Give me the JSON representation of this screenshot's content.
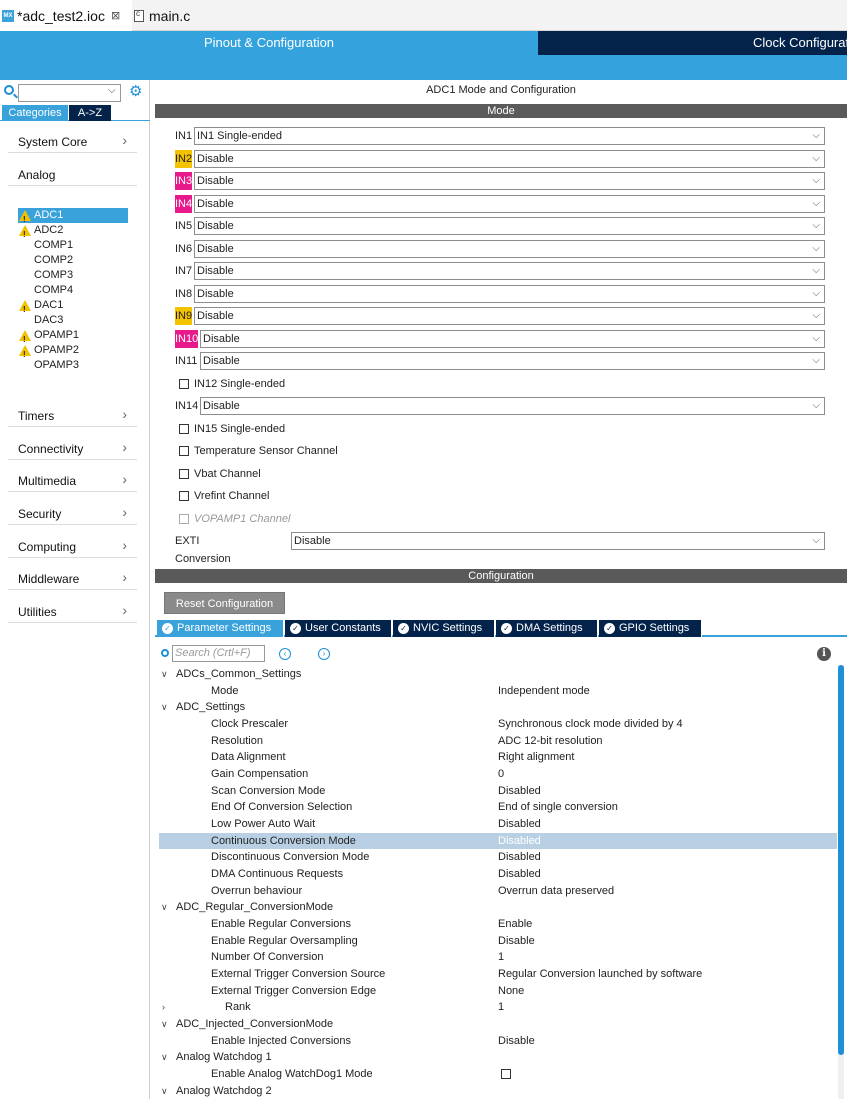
{
  "editor_tabs": [
    {
      "label": "*adc_test2.ioc",
      "icon": "mx-icon"
    },
    {
      "label": "main.c",
      "icon": "c-file-icon"
    }
  ],
  "header": {
    "pinout_tab": "Pinout & Configuration",
    "clock_tab": "Clock Configuration"
  },
  "left_panel": {
    "tabs": {
      "categories": "Categories",
      "az": "A->Z"
    },
    "categories": {
      "system_core": "System Core",
      "analog": "Analog",
      "timers": "Timers",
      "connectivity": "Connectivity",
      "multimedia": "Multimedia",
      "security": "Security",
      "computing": "Computing",
      "middleware": "Middleware",
      "utilities": "Utilities"
    },
    "analog_items": [
      {
        "label": "ADC1",
        "warning": true,
        "selected": true
      },
      {
        "label": "ADC2",
        "warning": true
      },
      {
        "label": "COMP1",
        "warning": false
      },
      {
        "label": "COMP2",
        "warning": false
      },
      {
        "label": "COMP3",
        "warning": false
      },
      {
        "label": "COMP4",
        "warning": false
      },
      {
        "label": "DAC1",
        "warning": true
      },
      {
        "label": "DAC3",
        "warning": false
      },
      {
        "label": "OPAMP1",
        "warning": true
      },
      {
        "label": "OPAMP2",
        "warning": true
      },
      {
        "label": "OPAMP3",
        "warning": false
      }
    ]
  },
  "panel": {
    "title": "ADC1 Mode and Configuration",
    "mode_section": "Mode",
    "config_section": "Configuration",
    "channels": [
      {
        "label": "IN1",
        "value": "IN1 Single-ended",
        "highlight": "none"
      },
      {
        "label": "IN2",
        "value": "Disable",
        "highlight": "yellow"
      },
      {
        "label": "IN3",
        "value": "Disable",
        "highlight": "pink"
      },
      {
        "label": "IN4",
        "value": "Disable",
        "highlight": "pink"
      },
      {
        "label": "IN5",
        "value": "Disable",
        "highlight": "none"
      },
      {
        "label": "IN6",
        "value": "Disable",
        "highlight": "none"
      },
      {
        "label": "IN7",
        "value": "Disable",
        "highlight": "none"
      },
      {
        "label": "IN8",
        "value": "Disable",
        "highlight": "none"
      },
      {
        "label": "IN9",
        "value": "Disable",
        "highlight": "yellow"
      },
      {
        "label": "IN10",
        "value": "Disable",
        "highlight": "pink"
      },
      {
        "label": "IN11",
        "value": "Disable",
        "highlight": "none"
      }
    ],
    "in12": "IN12 Single-ended",
    "in14": {
      "label": "IN14",
      "value": "Disable"
    },
    "in15": "IN15 Single-ended",
    "temp_sensor": "Temperature Sensor Channel",
    "vbat": "Vbat Channel",
    "vrefint": "Vrefint Channel",
    "vopamp1": "VOPAMP1 Channel",
    "exti": {
      "label": "EXTI Conversion Trigger",
      "value": "Disable"
    }
  },
  "config": {
    "reset_button": "Reset Configuration",
    "tabs": [
      "Parameter Settings",
      "User Constants",
      "NVIC Settings",
      "DMA Settings",
      "GPIO Settings"
    ],
    "search_placeholder": "Search (Crtl+F)",
    "tree": [
      {
        "name": "ADCs_Common_Settings",
        "level": 0,
        "expander": "v"
      },
      {
        "name": "Mode",
        "value": "Independent mode",
        "level": 1
      },
      {
        "name": "ADC_Settings",
        "level": 0,
        "expander": "v"
      },
      {
        "name": "Clock Prescaler",
        "value": "Synchronous clock mode divided by 4",
        "level": 1
      },
      {
        "name": "Resolution",
        "value": "ADC 12-bit resolution",
        "level": 1
      },
      {
        "name": "Data Alignment",
        "value": "Right alignment",
        "level": 1
      },
      {
        "name": "Gain Compensation",
        "value": "0",
        "level": 1
      },
      {
        "name": "Scan Conversion Mode",
        "value": "Disabled",
        "level": 1
      },
      {
        "name": "End Of Conversion Selection",
        "value": "End of single conversion",
        "level": 1
      },
      {
        "name": "Low Power Auto Wait",
        "value": "Disabled",
        "level": 1
      },
      {
        "name": "Continuous Conversion Mode",
        "value": "Disabled",
        "level": 1,
        "selected": true
      },
      {
        "name": "Discontinuous Conversion Mode",
        "value": "Disabled",
        "level": 1
      },
      {
        "name": "DMA Continuous Requests",
        "value": "Disabled",
        "level": 1
      },
      {
        "name": "Overrun behaviour",
        "value": "Overrun data preserved",
        "level": 1
      },
      {
        "name": "ADC_Regular_ConversionMode",
        "level": 0,
        "expander": "v"
      },
      {
        "name": "Enable Regular Conversions",
        "value": "Enable",
        "level": 1
      },
      {
        "name": "Enable Regular Oversampling",
        "value": "Disable",
        "level": 1
      },
      {
        "name": "Number Of Conversion",
        "value": "1",
        "level": 1
      },
      {
        "name": "External Trigger Conversion Source",
        "value": "Regular Conversion launched by software",
        "level": 1
      },
      {
        "name": "External Trigger Conversion Edge",
        "value": "None",
        "level": 1
      },
      {
        "name": "Rank",
        "value": "1",
        "level": 2,
        "expander": ">"
      },
      {
        "name": "ADC_Injected_ConversionMode",
        "level": 0,
        "expander": "v"
      },
      {
        "name": "Enable Injected Conversions",
        "value": "Disable",
        "level": 1
      },
      {
        "name": "Analog Watchdog 1",
        "level": 0,
        "expander": "v"
      },
      {
        "name": "Enable Analog WatchDog1 Mode",
        "checkbox": true,
        "level": 1
      },
      {
        "name": "Analog Watchdog 2",
        "level": 0,
        "expander": "v"
      }
    ]
  }
}
